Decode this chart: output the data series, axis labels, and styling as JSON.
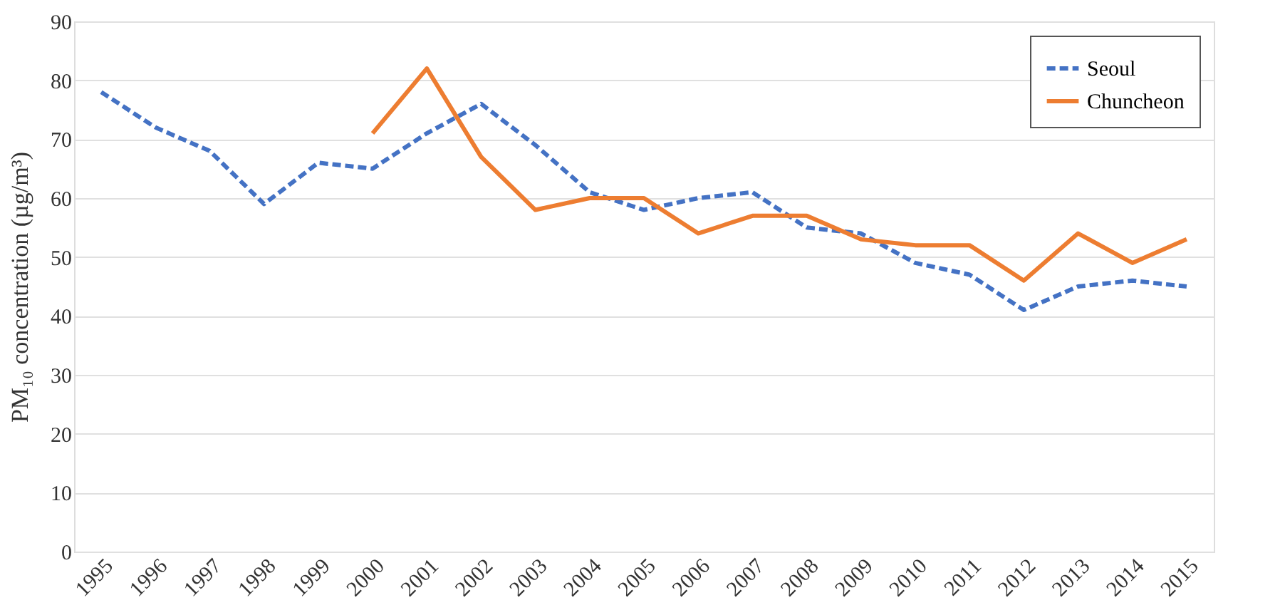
{
  "chart_data": {
    "type": "line",
    "ylabel": "PM₁₀ concentration (µg/m³)",
    "categories": [
      "1995",
      "1996",
      "1997",
      "1998",
      "1999",
      "2000",
      "2001",
      "2002",
      "2003",
      "2004",
      "2005",
      "2006",
      "2007",
      "2008",
      "2009",
      "2010",
      "2011",
      "2012",
      "2013",
      "2014",
      "2015"
    ],
    "series": [
      {
        "name": "Seoul",
        "color": "#4472c4",
        "line_style": "dashed",
        "values": [
          78,
          72,
          68,
          59,
          66,
          65,
          71,
          76,
          69,
          61,
          58,
          60,
          61,
          55,
          54,
          49,
          47,
          41,
          45,
          46,
          45
        ]
      },
      {
        "name": "Chuncheon",
        "color": "#ed7d31",
        "line_style": "solid",
        "values": [
          null,
          null,
          null,
          null,
          null,
          71,
          82,
          67,
          58,
          60,
          60,
          54,
          57,
          57,
          53,
          52,
          52,
          46,
          54,
          49,
          53
        ]
      }
    ],
    "ylim": [
      0,
      90
    ],
    "yticks": [
      0,
      10,
      20,
      30,
      40,
      50,
      60,
      70,
      80,
      90
    ],
    "grid": "y",
    "legend": "top right",
    "marker": "none"
  }
}
